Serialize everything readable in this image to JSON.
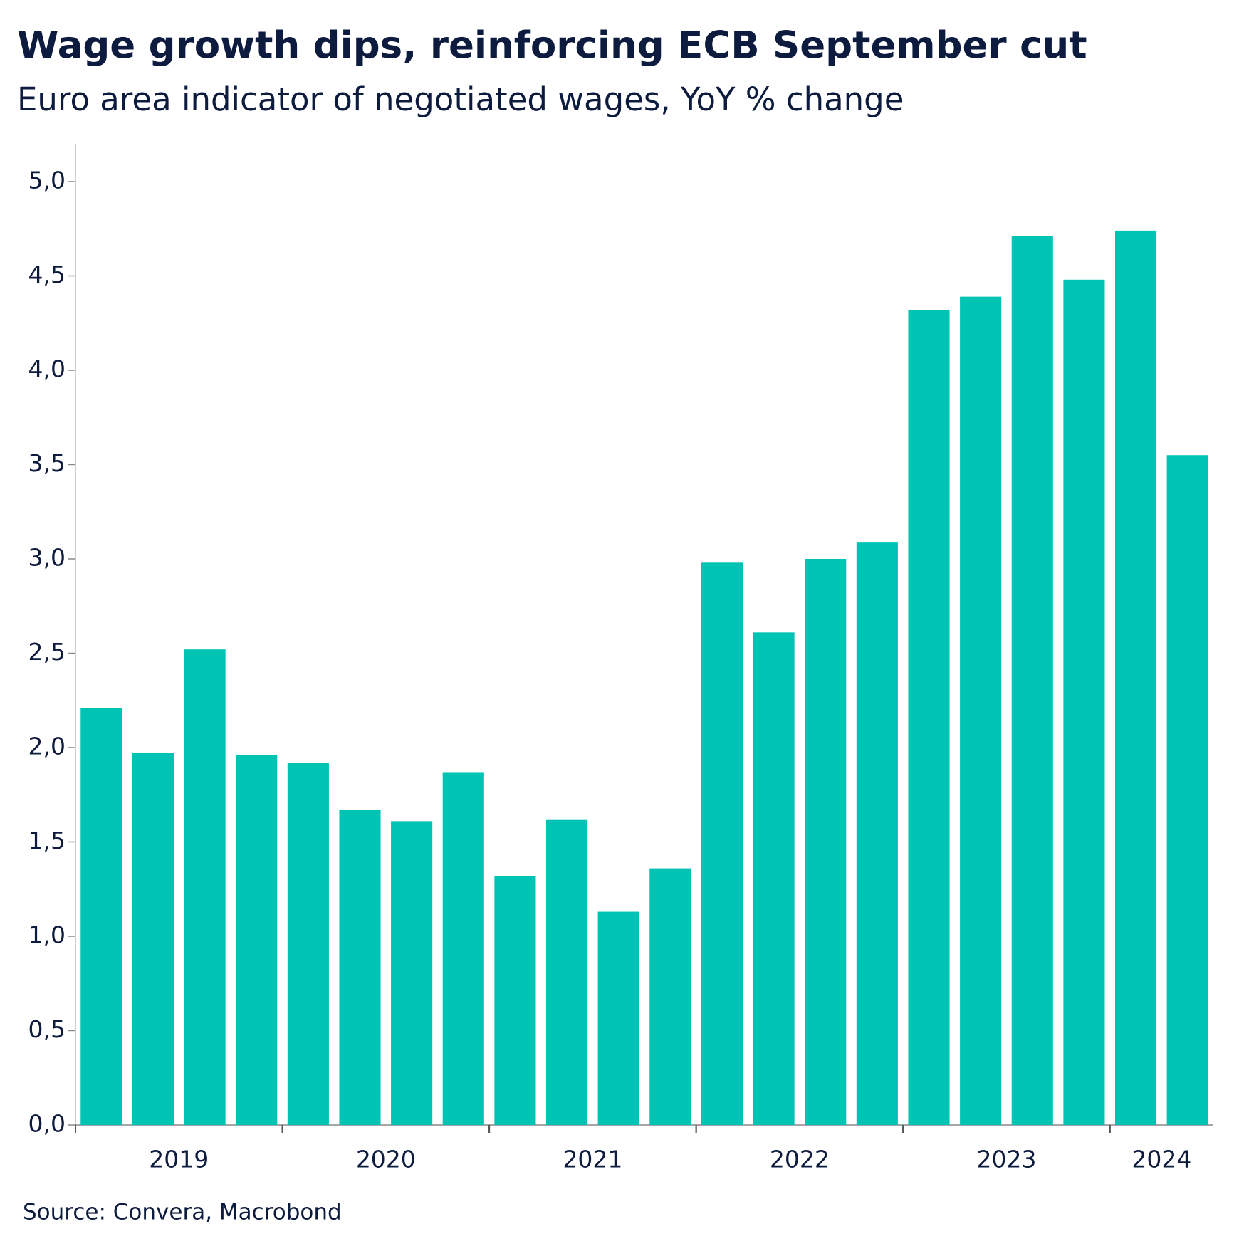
{
  "chart_data": {
    "type": "bar",
    "title": "Wage growth dips, reinforcing ECB September cut",
    "subtitle": "Euro area indicator of negotiated wages, YoY % change",
    "source": "Source: Convera, Macrobond",
    "categories": [
      "2019",
      null,
      null,
      null,
      "2020",
      null,
      null,
      null,
      "2021",
      null,
      null,
      null,
      "2022",
      null,
      null,
      null,
      "2023",
      null,
      null,
      null,
      "2024",
      null
    ],
    "values": [
      2.21,
      1.97,
      2.52,
      1.96,
      1.92,
      1.67,
      1.61,
      1.87,
      1.32,
      1.62,
      1.13,
      1.36,
      2.98,
      2.61,
      3.0,
      3.09,
      4.32,
      4.39,
      4.71,
      4.48,
      4.74,
      3.55
    ],
    "color": "#00c4b3",
    "ylim": [
      0,
      5.2
    ],
    "yticks": [
      {
        "value": 0,
        "label": "0,0"
      },
      {
        "value": 0.5,
        "label": "0,5"
      },
      {
        "value": 1,
        "label": "1,0"
      },
      {
        "value": 1.5,
        "label": "1,5"
      },
      {
        "value": 2,
        "label": "2,0"
      },
      {
        "value": 2.5,
        "label": "2,5"
      },
      {
        "value": 3,
        "label": "3,0"
      },
      {
        "value": 3.5,
        "label": "3,5"
      },
      {
        "value": 4,
        "label": "4,0"
      },
      {
        "value": 4.5,
        "label": "4,5"
      },
      {
        "value": 5,
        "label": "5,0"
      }
    ],
    "grid": false
  }
}
